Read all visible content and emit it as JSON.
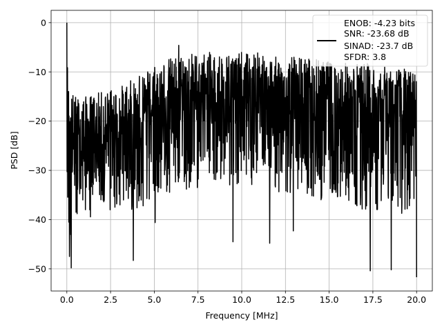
{
  "chart_data": {
    "type": "line",
    "title": "",
    "xlabel": "Frequency [MHz]",
    "ylabel": "PSD [dB]",
    "xlim": [
      -0.9,
      20.9
    ],
    "ylim": [
      -54.5,
      2.5
    ],
    "grid": true,
    "legend_position": "top-right",
    "legend_lines": [
      "ENOB: -4.23 bits",
      "SNR: -23.68 dB",
      "SINAD: -23.7 dB",
      "SFDR: 3.8"
    ],
    "x_ticks": [
      0,
      2.5,
      5,
      7.5,
      10,
      12.5,
      15,
      17.5,
      20
    ],
    "x_tick_labels": [
      "0.0",
      "2.5",
      "5.0",
      "7.5",
      "10.0",
      "12.5",
      "15.0",
      "17.5",
      "20.0"
    ],
    "y_ticks": [
      0,
      -10,
      -20,
      -30,
      -40,
      -50
    ],
    "y_tick_labels": [
      "0",
      "−10",
      "−20",
      "−30",
      "−40",
      "−50"
    ],
    "series": [
      {
        "color": "#000000",
        "x_range": [
          0,
          20
        ],
        "spectrum_envelope": {
          "x": [
            0,
            0.05,
            0.15,
            0.3,
            0.6,
            1.0,
            2.0,
            3.0,
            4.0,
            5.0,
            6.0,
            7.0,
            8.0,
            9.0,
            10.0,
            11.0,
            12.0,
            13.0,
            14.0,
            15.0,
            16.0,
            17.0,
            18.0,
            19.0,
            20.0
          ],
          "upper": [
            0,
            -10,
            -12,
            -14,
            -15,
            -15,
            -14,
            -13,
            -11,
            -8,
            -7,
            -6,
            -6,
            -6,
            -6,
            -6,
            -7,
            -7,
            -7,
            -8,
            -8,
            -8,
            -9,
            -9,
            -10
          ],
          "lower": [
            -37,
            -47,
            -49,
            -45,
            -42,
            -40,
            -39,
            -38,
            -38,
            -36,
            -35,
            -34,
            -33,
            -33,
            -33,
            -34,
            -35,
            -35,
            -36,
            -36,
            -37,
            -38,
            -38,
            -39,
            -40
          ]
        },
        "notable_points": [
          {
            "x": 0.0,
            "y": 0.0
          },
          {
            "x": 0.15,
            "y": -47.5
          },
          {
            "x": 0.25,
            "y": -49.8
          },
          {
            "x": 3.8,
            "y": -48.3
          },
          {
            "x": 17.35,
            "y": -50.4
          },
          {
            "x": 18.55,
            "y": -50.2
          },
          {
            "x": 20.0,
            "y": -51.7
          },
          {
            "x": 5.05,
            "y": -40.6
          },
          {
            "x": 9.5,
            "y": -44.5
          },
          {
            "x": 11.6,
            "y": -44.8
          },
          {
            "x": 12.95,
            "y": -42.3
          },
          {
            "x": 6.4,
            "y": -4.6
          }
        ]
      }
    ]
  }
}
